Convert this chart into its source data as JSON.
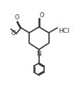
{
  "bg_color": "white",
  "line_color": "#333333",
  "text_color": "#333333",
  "lw": 1.2,
  "fig_width": 1.15,
  "fig_height": 1.26,
  "dpi": 100,
  "xlim": [
    0,
    11
  ],
  "ylim": [
    -3.5,
    8.5
  ],
  "HCl_label": "HCl",
  "N_label": "N",
  "O_k_label": "O",
  "O_eu_label": "O",
  "O_es_label": "O",
  "Me_label": "O",
  "font_size": 5.5
}
